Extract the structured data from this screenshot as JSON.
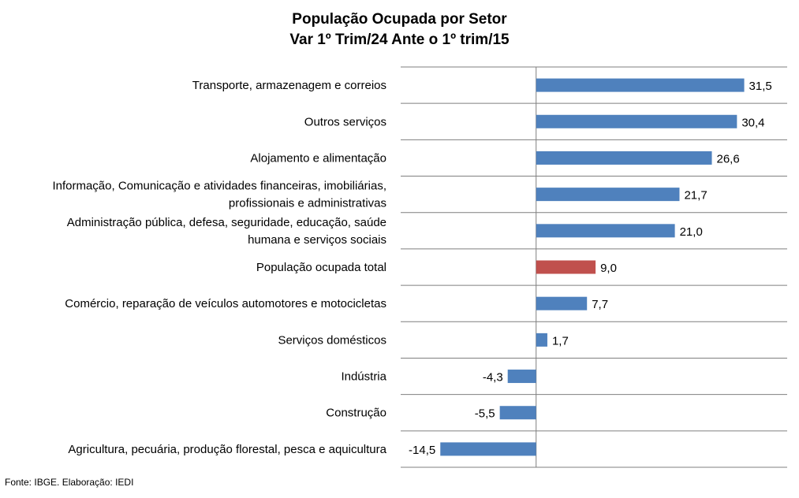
{
  "chart_data": {
    "type": "bar",
    "orientation": "horizontal",
    "title_lines": [
      "População Ocupada por Setor",
      "Var 1º Trim/24 Ante o 1º trim/15"
    ],
    "categories": [
      [
        "Transporte, armazenagem e correios"
      ],
      [
        "Outros serviços"
      ],
      [
        "Alojamento e alimentação"
      ],
      [
        "Informação, Comunicação e atividades financeiras, imobiliárias,",
        "profissionais e administrativas"
      ],
      [
        "Administração pública, defesa, seguridade, educação, saúde",
        "humana e serviços sociais"
      ],
      [
        "População ocupada total"
      ],
      [
        "Comércio, reparação de veículos automotores e motocicletas"
      ],
      [
        "Serviços domésticos"
      ],
      [
        "Indústria"
      ],
      [
        "Construção"
      ],
      [
        "Agricultura, pecuária, produção florestal, pesca e aquicultura"
      ]
    ],
    "values": [
      31.5,
      30.4,
      26.6,
      21.7,
      21.0,
      9.0,
      7.7,
      1.7,
      -4.3,
      -5.5,
      -14.5
    ],
    "value_labels": [
      "31,5",
      "30,4",
      "26,6",
      "21,7",
      "21,0",
      "9,0",
      "7,7",
      "1,7",
      "-4,3",
      "-5,5",
      "-14,5"
    ],
    "highlight_index": 5,
    "colors": {
      "default_bar": "#4F81BD",
      "highlight_bar": "#C0504D",
      "grid": "#7F7F7F"
    },
    "xlim": [
      -20.5,
      38.0
    ],
    "grid": true,
    "legend": "none",
    "source": "Fonte: IBGE. Elaboração: IEDI"
  }
}
